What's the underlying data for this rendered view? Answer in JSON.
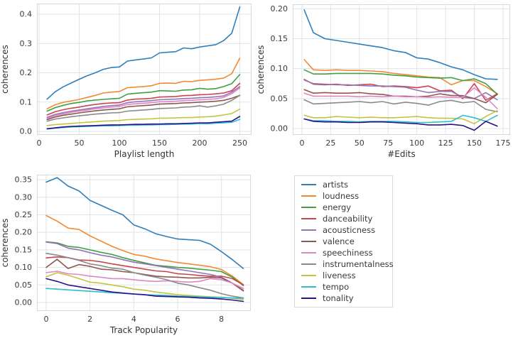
{
  "figure": {
    "background": "#ffffff",
    "grid_color": "#e0e3e7",
    "frame_color": "#d6d9de",
    "tick_color": "#3a3a3a",
    "label_color": "#333333"
  },
  "legend": {
    "position": "bottom-right",
    "entries": [
      {
        "label": "artists",
        "color": "#2f7eb8"
      },
      {
        "label": "loudness",
        "color": "#f28a33"
      },
      {
        "label": "energy",
        "color": "#3fa045"
      },
      {
        "label": "danceability",
        "color": "#c9444d"
      },
      {
        "label": "acousticness",
        "color": "#9572b5"
      },
      {
        "label": "valence",
        "color": "#8e5650"
      },
      {
        "label": "speechiness",
        "color": "#dd87c4"
      },
      {
        "label": "instrumentalness",
        "color": "#8a8a8a"
      },
      {
        "label": "liveness",
        "color": "#c3c43f"
      },
      {
        "label": "tempo",
        "color": "#2bbfce"
      },
      {
        "label": "tonality",
        "color": "#2e1089"
      }
    ]
  },
  "chart_data": [
    {
      "type": "line",
      "title": "",
      "xlabel": "Playlist length",
      "ylabel": "coherences",
      "grid": true,
      "xlim": [
        -2.65,
        264.6
      ],
      "ylim": [
        -0.0121,
        0.4364
      ],
      "xticks": [
        0,
        50,
        100,
        150,
        200,
        250
      ],
      "xtick_labels": [
        "0",
        "50",
        "100",
        "150",
        "200",
        "250"
      ],
      "yticks": [
        0.0,
        0.1,
        0.2,
        0.3,
        0.4
      ],
      "ytick_labels": [
        "0.0",
        "0.1",
        "0.2",
        "0.3",
        "0.4"
      ],
      "x": [
        10,
        20,
        30,
        40,
        50,
        60,
        70,
        80,
        90,
        100,
        110,
        120,
        130,
        140,
        150,
        160,
        170,
        180,
        190,
        200,
        210,
        220,
        230,
        240,
        250
      ],
      "series": [
        {
          "name": "artists",
          "values": [
            0.11,
            0.135,
            0.152,
            0.165,
            0.178,
            0.19,
            0.2,
            0.212,
            0.218,
            0.22,
            0.24,
            0.244,
            0.247,
            0.251,
            0.268,
            0.27,
            0.272,
            0.285,
            0.282,
            0.288,
            0.292,
            0.296,
            0.31,
            0.335,
            0.425
          ]
        },
        {
          "name": "loudness",
          "values": [
            0.077,
            0.091,
            0.099,
            0.104,
            0.109,
            0.116,
            0.123,
            0.131,
            0.134,
            0.136,
            0.149,
            0.151,
            0.153,
            0.156,
            0.164,
            0.165,
            0.164,
            0.171,
            0.17,
            0.174,
            0.176,
            0.178,
            0.182,
            0.197,
            0.25
          ]
        },
        {
          "name": "energy",
          "values": [
            0.069,
            0.081,
            0.089,
            0.095,
            0.099,
            0.104,
            0.107,
            0.109,
            0.111,
            0.113,
            0.127,
            0.13,
            0.132,
            0.134,
            0.139,
            0.138,
            0.137,
            0.141,
            0.142,
            0.147,
            0.144,
            0.146,
            0.153,
            0.163,
            0.194
          ]
        },
        {
          "name": "danceability",
          "values": [
            0.056,
            0.067,
            0.074,
            0.079,
            0.083,
            0.088,
            0.092,
            0.095,
            0.097,
            0.098,
            0.107,
            0.11,
            0.111,
            0.113,
            0.117,
            0.118,
            0.119,
            0.122,
            0.123,
            0.125,
            0.126,
            0.128,
            0.131,
            0.139,
            0.164
          ]
        },
        {
          "name": "acousticness",
          "values": [
            0.048,
            0.058,
            0.064,
            0.069,
            0.073,
            0.077,
            0.081,
            0.085,
            0.088,
            0.09,
            0.098,
            0.101,
            0.103,
            0.105,
            0.108,
            0.109,
            0.11,
            0.112,
            0.113,
            0.115,
            0.116,
            0.118,
            0.121,
            0.134,
            0.153
          ]
        },
        {
          "name": "valence",
          "values": [
            0.04,
            0.049,
            0.055,
            0.059,
            0.063,
            0.067,
            0.07,
            0.073,
            0.075,
            0.077,
            0.084,
            0.086,
            0.088,
            0.09,
            0.093,
            0.094,
            0.095,
            0.097,
            0.098,
            0.1,
            0.101,
            0.103,
            0.106,
            0.113,
            0.123
          ]
        },
        {
          "name": "speechiness",
          "values": [
            0.044,
            0.054,
            0.06,
            0.065,
            0.069,
            0.073,
            0.077,
            0.08,
            0.083,
            0.085,
            0.092,
            0.094,
            0.096,
            0.098,
            0.101,
            0.102,
            0.103,
            0.105,
            0.106,
            0.108,
            0.109,
            0.111,
            0.116,
            0.129,
            0.148
          ]
        },
        {
          "name": "instrumentalness",
          "values": [
            0.035,
            0.042,
            0.046,
            0.05,
            0.053,
            0.056,
            0.059,
            0.061,
            0.063,
            0.064,
            0.069,
            0.071,
            0.073,
            0.075,
            0.078,
            0.079,
            0.08,
            0.083,
            0.084,
            0.087,
            0.083,
            0.087,
            0.093,
            0.106,
            0.123
          ]
        },
        {
          "name": "liveness",
          "values": [
            0.02,
            0.023,
            0.025,
            0.027,
            0.029,
            0.031,
            0.033,
            0.035,
            0.036,
            0.037,
            0.04,
            0.041,
            0.042,
            0.043,
            0.045,
            0.045,
            0.046,
            0.047,
            0.047,
            0.049,
            0.05,
            0.052,
            0.056,
            0.061,
            0.076
          ]
        },
        {
          "name": "tempo",
          "values": [
            0.008,
            0.011,
            0.013,
            0.015,
            0.016,
            0.017,
            0.018,
            0.019,
            0.019,
            0.02,
            0.021,
            0.021,
            0.022,
            0.022,
            0.023,
            0.023,
            0.024,
            0.025,
            0.025,
            0.027,
            0.026,
            0.028,
            0.029,
            0.031,
            0.041
          ]
        },
        {
          "name": "tonality",
          "values": [
            0.009,
            0.012,
            0.015,
            0.017,
            0.018,
            0.019,
            0.02,
            0.021,
            0.022,
            0.022,
            0.023,
            0.024,
            0.024,
            0.025,
            0.025,
            0.026,
            0.026,
            0.027,
            0.028,
            0.029,
            0.029,
            0.031,
            0.033,
            0.035,
            0.051
          ]
        }
      ]
    },
    {
      "type": "line",
      "title": "",
      "xlabel": "#Edits",
      "ylabel": "coherences",
      "grid": true,
      "xlim": [
        -8.0,
        181.2
      ],
      "ylim": [
        -0.0107,
        0.2075
      ],
      "xticks": [
        0,
        25,
        50,
        75,
        100,
        125,
        150,
        175
      ],
      "xtick_labels": [
        "0",
        "25",
        "50",
        "75",
        "100",
        "125",
        "150",
        "175"
      ],
      "yticks": [
        0.0,
        0.05,
        0.1,
        0.15,
        0.2
      ],
      "ytick_labels": [
        "0.00",
        "0.05",
        "0.10",
        "0.15",
        "0.20"
      ],
      "x": [
        2,
        10,
        20,
        30,
        40,
        50,
        60,
        70,
        80,
        90,
        100,
        110,
        120,
        130,
        140,
        150,
        160,
        170
      ],
      "series": [
        {
          "name": "artists",
          "values": [
            0.198,
            0.16,
            0.15,
            0.147,
            0.144,
            0.141,
            0.138,
            0.135,
            0.13,
            0.127,
            0.118,
            0.116,
            0.11,
            0.103,
            0.098,
            0.09,
            0.083,
            0.082
          ]
        },
        {
          "name": "loudness",
          "values": [
            0.115,
            0.098,
            0.097,
            0.098,
            0.097,
            0.097,
            0.096,
            0.095,
            0.092,
            0.09,
            0.088,
            0.086,
            0.085,
            0.073,
            0.08,
            0.08,
            0.07,
            0.058
          ]
        },
        {
          "name": "energy",
          "values": [
            0.098,
            0.091,
            0.091,
            0.092,
            0.092,
            0.092,
            0.092,
            0.091,
            0.089,
            0.088,
            0.086,
            0.085,
            0.084,
            0.085,
            0.08,
            0.083,
            0.075,
            0.057
          ]
        },
        {
          "name": "danceability",
          "values": [
            0.082,
            0.074,
            0.073,
            0.074,
            0.072,
            0.073,
            0.074,
            0.07,
            0.071,
            0.07,
            0.068,
            0.071,
            0.063,
            0.064,
            0.05,
            0.075,
            0.047,
            0.058
          ]
        },
        {
          "name": "acousticness",
          "values": [
            0.081,
            0.075,
            0.074,
            0.073,
            0.073,
            0.072,
            0.071,
            0.071,
            0.07,
            0.069,
            0.064,
            0.06,
            0.062,
            0.062,
            0.052,
            0.05,
            0.06,
            0.048
          ]
        },
        {
          "name": "valence",
          "values": [
            0.065,
            0.059,
            0.06,
            0.059,
            0.059,
            0.06,
            0.058,
            0.057,
            0.054,
            0.054,
            0.053,
            0.054,
            0.058,
            0.055,
            0.055,
            0.05,
            0.043,
            0.057
          ]
        },
        {
          "name": "speechiness",
          "values": [
            0.059,
            0.054,
            0.054,
            0.054,
            0.054,
            0.053,
            0.054,
            0.053,
            0.054,
            0.053,
            0.053,
            0.052,
            0.053,
            0.052,
            0.052,
            0.068,
            0.052,
            0.033
          ]
        },
        {
          "name": "instrumentalness",
          "values": [
            0.048,
            0.041,
            0.042,
            0.043,
            0.044,
            0.045,
            0.043,
            0.045,
            0.041,
            0.044,
            0.042,
            0.039,
            0.045,
            0.047,
            0.043,
            0.045,
            0.032,
            0.028
          ]
        },
        {
          "name": "liveness",
          "values": [
            0.022,
            0.018,
            0.018,
            0.02,
            0.019,
            0.018,
            0.019,
            0.018,
            0.018,
            0.019,
            0.02,
            0.018,
            0.017,
            0.017,
            0.016,
            0.008,
            0.02,
            0.03
          ]
        },
        {
          "name": "tempo",
          "values": [
            0.016,
            0.013,
            0.013,
            0.012,
            0.012,
            0.011,
            0.012,
            0.012,
            0.012,
            0.011,
            0.01,
            0.01,
            0.011,
            0.012,
            0.022,
            0.018,
            0.012,
            0.022
          ]
        },
        {
          "name": "tonality",
          "values": [
            0.016,
            0.012,
            0.011,
            0.011,
            0.01,
            0.01,
            0.011,
            0.011,
            0.01,
            0.009,
            0.008,
            0.006,
            0.006,
            0.007,
            0.005,
            -0.003,
            0.012,
            0.004
          ]
        }
      ]
    },
    {
      "type": "line",
      "title": "",
      "xlabel": "Track Popularity",
      "ylabel": "coherences",
      "grid": true,
      "xlim": [
        -0.42,
        9.34
      ],
      "ylim": [
        -0.0243,
        0.3643
      ],
      "xticks": [
        0,
        2,
        4,
        6,
        8
      ],
      "xtick_labels": [
        "0",
        "2",
        "4",
        "6",
        "8"
      ],
      "yticks": [
        0.0,
        0.05,
        0.1,
        0.15,
        0.2,
        0.25,
        0.3,
        0.35
      ],
      "ytick_labels": [
        "0.00",
        "0.05",
        "0.10",
        "0.15",
        "0.20",
        "0.25",
        "0.30",
        "0.35"
      ],
      "x": [
        0,
        0.5,
        1,
        1.5,
        2,
        2.5,
        3,
        3.5,
        4,
        4.5,
        5,
        5.5,
        6,
        6.5,
        7,
        7.5,
        8,
        8.5,
        9
      ],
      "series": [
        {
          "name": "artists",
          "values": [
            0.343,
            0.356,
            0.332,
            0.318,
            0.291,
            0.277,
            0.263,
            0.25,
            0.221,
            0.21,
            0.196,
            0.188,
            0.181,
            0.179,
            0.177,
            0.166,
            0.145,
            0.122,
            0.097
          ]
        },
        {
          "name": "loudness",
          "values": [
            0.248,
            0.232,
            0.212,
            0.208,
            0.19,
            0.175,
            0.16,
            0.148,
            0.137,
            0.132,
            0.124,
            0.119,
            0.114,
            0.11,
            0.106,
            0.102,
            0.094,
            0.075,
            0.051
          ]
        },
        {
          "name": "energy",
          "values": [
            0.173,
            0.17,
            0.16,
            0.157,
            0.15,
            0.143,
            0.137,
            0.128,
            0.12,
            0.113,
            0.106,
            0.103,
            0.1,
            0.098,
            0.095,
            0.092,
            0.088,
            0.072,
            0.048
          ]
        },
        {
          "name": "danceability",
          "values": [
            0.127,
            0.13,
            0.128,
            0.121,
            0.12,
            0.116,
            0.11,
            0.105,
            0.1,
            0.095,
            0.09,
            0.088,
            0.082,
            0.08,
            0.077,
            0.075,
            0.075,
            0.068,
            0.05
          ]
        },
        {
          "name": "acousticness",
          "values": [
            0.172,
            0.168,
            0.155,
            0.15,
            0.142,
            0.135,
            0.13,
            0.122,
            0.115,
            0.11,
            0.105,
            0.1,
            0.095,
            0.09,
            0.085,
            0.08,
            0.072,
            0.055,
            0.035
          ]
        },
        {
          "name": "valence",
          "values": [
            0.1,
            0.123,
            0.097,
            0.108,
            0.103,
            0.095,
            0.093,
            0.088,
            0.085,
            0.08,
            0.075,
            0.073,
            0.072,
            0.07,
            0.07,
            0.072,
            0.07,
            0.055,
            0.033
          ]
        },
        {
          "name": "speechiness",
          "values": [
            0.085,
            0.089,
            0.082,
            0.08,
            0.075,
            0.072,
            0.068,
            0.068,
            0.065,
            0.062,
            0.06,
            0.062,
            0.06,
            0.058,
            0.06,
            0.068,
            0.065,
            0.055,
            0.04
          ]
        },
        {
          "name": "instrumentalness",
          "values": [
            0.14,
            0.135,
            0.128,
            0.12,
            0.11,
            0.105,
            0.098,
            0.095,
            0.085,
            0.078,
            0.072,
            0.065,
            0.055,
            0.05,
            0.042,
            0.035,
            0.025,
            0.018,
            0.013
          ]
        },
        {
          "name": "liveness",
          "values": [
            0.073,
            0.085,
            0.078,
            0.068,
            0.058,
            0.055,
            0.05,
            0.045,
            0.038,
            0.035,
            0.03,
            0.026,
            0.022,
            0.02,
            0.018,
            0.016,
            0.015,
            0.012,
            0.008
          ]
        },
        {
          "name": "tempo",
          "values": [
            0.04,
            0.038,
            0.036,
            0.034,
            0.032,
            0.03,
            0.028,
            0.026,
            0.024,
            0.022,
            0.021,
            0.02,
            0.018,
            0.017,
            0.016,
            0.015,
            0.014,
            0.013,
            0.012
          ]
        },
        {
          "name": "tonality",
          "values": [
            0.068,
            0.06,
            0.05,
            0.045,
            0.04,
            0.035,
            0.03,
            0.027,
            0.024,
            0.022,
            0.018,
            0.017,
            0.016,
            0.015,
            0.013,
            0.012,
            0.01,
            0.007,
            0.003
          ]
        }
      ]
    }
  ]
}
